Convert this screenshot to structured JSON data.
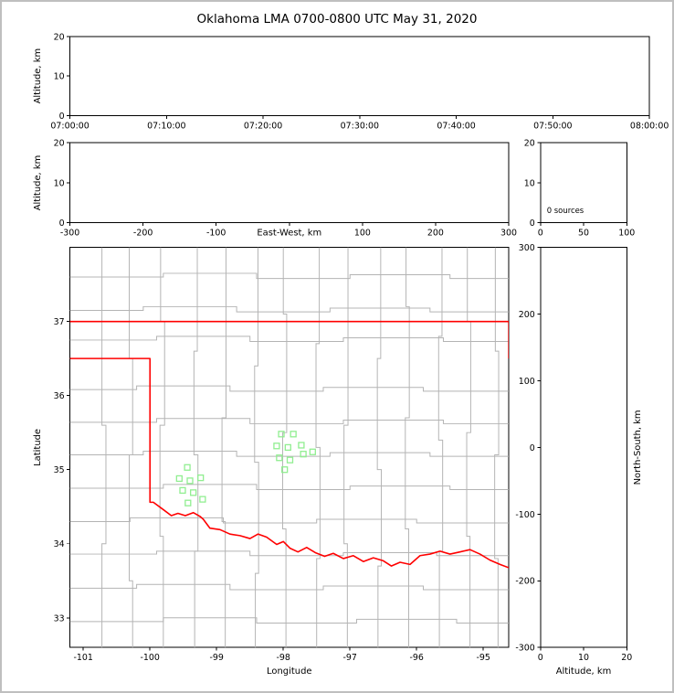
{
  "title": "Oklahoma LMA 0700-0800 UTC May 31, 2020",
  "colors": {
    "axis": "#000000",
    "background": "#ffffff",
    "frame": "#bfbfbf",
    "state_border": "#ff0000",
    "county_border": "#b4b4b4",
    "station": "#90ee90"
  },
  "chart_data": [
    {
      "id": "time-height",
      "type": "scatter",
      "title": "",
      "xlabel": "",
      "ylabel": "Altitude, km",
      "xlim": [
        0,
        3600
      ],
      "xticks": [
        0,
        600,
        1200,
        1800,
        2400,
        3000,
        3600
      ],
      "xtick_labels": [
        "07:00:00",
        "07:10:00",
        "07:20:00",
        "07:30:00",
        "07:40:00",
        "07:50:00",
        "08:00:00"
      ],
      "ylim": [
        0,
        20
      ],
      "yticks": [
        0,
        10,
        20
      ],
      "points": []
    },
    {
      "id": "ew-height",
      "type": "scatter",
      "title": "",
      "xlabel": "East-West, km",
      "ylabel": "Altitude, km",
      "xlim": [
        -300,
        300
      ],
      "xticks": [
        -300,
        -200,
        -100,
        0,
        100,
        200,
        300
      ],
      "xtick_labels": [
        "-300",
        "-200",
        "-100",
        "",
        "100",
        "200",
        "300"
      ],
      "ylim": [
        0,
        20
      ],
      "yticks": [
        0,
        10,
        20
      ],
      "points": []
    },
    {
      "id": "alt-histogram",
      "type": "line",
      "title": "",
      "xlabel": "",
      "ylabel": "",
      "xlim": [
        0,
        100
      ],
      "xticks": [
        0,
        50,
        100
      ],
      "xtick_labels": [
        "0",
        "50",
        "100"
      ],
      "ylim": [
        0,
        20
      ],
      "yticks": [
        0,
        10,
        20
      ],
      "annotation": "0 sources",
      "points": []
    },
    {
      "id": "plan-map",
      "type": "scatter",
      "title": "",
      "xlabel": "Longitude",
      "ylabel": "Latitude",
      "xlim": [
        -101.2,
        -94.62
      ],
      "xticks": [
        -101,
        -100,
        -99,
        -98,
        -97,
        -96,
        -95
      ],
      "xtick_labels": [
        "-101",
        "-100",
        "-99",
        "-98",
        "-97",
        "-96",
        "-95"
      ],
      "ylim": [
        32.6,
        38.0
      ],
      "yticks": [
        33,
        34,
        35,
        36,
        37
      ],
      "stations": [
        [
          -98.03,
          35.48
        ],
        [
          -97.85,
          35.48
        ],
        [
          -98.1,
          35.32
        ],
        [
          -97.93,
          35.3
        ],
        [
          -97.73,
          35.33
        ],
        [
          -98.06,
          35.16
        ],
        [
          -97.9,
          35.13
        ],
        [
          -97.7,
          35.21
        ],
        [
          -97.56,
          35.24
        ],
        [
          -97.98,
          35.0
        ],
        [
          -99.44,
          35.03
        ],
        [
          -99.56,
          34.88
        ],
        [
          -99.4,
          34.85
        ],
        [
          -99.24,
          34.89
        ],
        [
          -99.51,
          34.72
        ],
        [
          -99.35,
          34.69
        ],
        [
          -99.43,
          34.55
        ],
        [
          -99.21,
          34.6
        ]
      ]
    },
    {
      "id": "ns-height",
      "type": "scatter",
      "title": "",
      "xlabel": "Altitude, km",
      "ylabel": "North-South, km",
      "xlim": [
        0,
        20
      ],
      "xticks": [
        0,
        10,
        20
      ],
      "xtick_labels": [
        "0",
        "10",
        "20"
      ],
      "ylim": [
        -300,
        300
      ],
      "yticks": [
        -300,
        -200,
        -100,
        0,
        100,
        200,
        300
      ],
      "points": []
    }
  ],
  "map": {
    "state_border": [
      [
        [
          -101.2,
          37.0
        ],
        [
          -94.618,
          37.0
        ],
        [
          -94.618,
          36.5
        ]
      ],
      [
        [
          -101.2,
          36.5
        ],
        [
          -100.0,
          36.5
        ],
        [
          -100.0,
          34.56
        ],
        [
          -99.95,
          34.56
        ],
        [
          -99.8,
          34.46
        ],
        [
          -99.68,
          34.38
        ],
        [
          -99.58,
          34.41
        ],
        [
          -99.47,
          34.38
        ],
        [
          -99.35,
          34.42
        ],
        [
          -99.25,
          34.37
        ],
        [
          -99.2,
          34.33
        ],
        [
          -99.1,
          34.21
        ],
        [
          -98.95,
          34.19
        ],
        [
          -98.8,
          34.13
        ],
        [
          -98.65,
          34.11
        ],
        [
          -98.5,
          34.07
        ],
        [
          -98.38,
          34.13
        ],
        [
          -98.25,
          34.09
        ],
        [
          -98.1,
          33.99
        ],
        [
          -98.0,
          34.03
        ],
        [
          -97.9,
          33.94
        ],
        [
          -97.78,
          33.89
        ],
        [
          -97.65,
          33.95
        ],
        [
          -97.52,
          33.88
        ],
        [
          -97.38,
          33.83
        ],
        [
          -97.25,
          33.87
        ],
        [
          -97.1,
          33.8
        ],
        [
          -96.95,
          33.84
        ],
        [
          -96.8,
          33.76
        ],
        [
          -96.65,
          33.81
        ],
        [
          -96.5,
          33.77
        ],
        [
          -96.38,
          33.7
        ],
        [
          -96.25,
          33.75
        ],
        [
          -96.1,
          33.72
        ],
        [
          -95.95,
          33.84
        ],
        [
          -95.8,
          33.86
        ],
        [
          -95.65,
          33.9
        ],
        [
          -95.5,
          33.86
        ],
        [
          -95.35,
          33.89
        ],
        [
          -95.2,
          33.92
        ],
        [
          -95.05,
          33.86
        ],
        [
          -94.9,
          33.78
        ],
        [
          -94.75,
          33.72
        ],
        [
          -94.6,
          33.67
        ]
      ]
    ],
    "county_lines": [
      [
        [
          -100.72,
          32.6
        ],
        [
          -100.72,
          34.0
        ],
        [
          -100.66,
          34.0
        ],
        [
          -100.66,
          35.6
        ],
        [
          -100.72,
          35.6
        ],
        [
          -100.72,
          38.0
        ]
      ],
      [
        [
          -100.26,
          32.6
        ],
        [
          -100.26,
          33.5
        ],
        [
          -100.31,
          33.5
        ],
        [
          -100.31,
          35.2
        ],
        [
          -100.26,
          35.2
        ],
        [
          -100.26,
          36.5
        ],
        [
          -100.31,
          36.5
        ],
        [
          -100.31,
          38.0
        ]
      ],
      [
        [
          -99.8,
          32.6
        ],
        [
          -99.8,
          34.1
        ],
        [
          -99.85,
          34.1
        ],
        [
          -99.85,
          35.6
        ],
        [
          -99.78,
          35.6
        ],
        [
          -99.78,
          37.0
        ],
        [
          -99.84,
          37.0
        ],
        [
          -99.84,
          38.0
        ]
      ],
      [
        [
          -99.33,
          32.6
        ],
        [
          -99.33,
          33.9
        ],
        [
          -99.28,
          33.9
        ],
        [
          -99.28,
          35.2
        ],
        [
          -99.34,
          35.2
        ],
        [
          -99.34,
          36.6
        ],
        [
          -99.29,
          36.6
        ],
        [
          -99.29,
          38.0
        ]
      ],
      [
        [
          -98.87,
          32.6
        ],
        [
          -98.87,
          34.3
        ],
        [
          -98.92,
          34.3
        ],
        [
          -98.92,
          35.7
        ],
        [
          -98.86,
          35.7
        ],
        [
          -98.86,
          38.0
        ]
      ],
      [
        [
          -98.42,
          32.6
        ],
        [
          -98.42,
          33.6
        ],
        [
          -98.37,
          33.6
        ],
        [
          -98.37,
          35.1
        ],
        [
          -98.43,
          35.1
        ],
        [
          -98.43,
          36.4
        ],
        [
          -98.38,
          36.4
        ],
        [
          -98.38,
          38.0
        ]
      ],
      [
        [
          -97.96,
          32.6
        ],
        [
          -97.96,
          34.2
        ],
        [
          -98.01,
          34.2
        ],
        [
          -98.01,
          35.5
        ],
        [
          -97.95,
          35.5
        ],
        [
          -97.95,
          37.1
        ],
        [
          -98.0,
          37.1
        ],
        [
          -98.0,
          38.0
        ]
      ],
      [
        [
          -97.5,
          32.6
        ],
        [
          -97.5,
          33.8
        ],
        [
          -97.45,
          33.8
        ],
        [
          -97.45,
          35.3
        ],
        [
          -97.51,
          35.3
        ],
        [
          -97.51,
          36.7
        ],
        [
          -97.46,
          36.7
        ],
        [
          -97.46,
          38.0
        ]
      ],
      [
        [
          -97.04,
          32.6
        ],
        [
          -97.04,
          34.0
        ],
        [
          -97.09,
          34.0
        ],
        [
          -97.09,
          35.6
        ],
        [
          -97.03,
          35.6
        ],
        [
          -97.03,
          38.0
        ]
      ],
      [
        [
          -96.58,
          32.6
        ],
        [
          -96.58,
          33.7
        ],
        [
          -96.53,
          33.7
        ],
        [
          -96.53,
          35.0
        ],
        [
          -96.59,
          35.0
        ],
        [
          -96.59,
          36.5
        ],
        [
          -96.54,
          36.5
        ],
        [
          -96.54,
          38.0
        ]
      ],
      [
        [
          -96.12,
          32.6
        ],
        [
          -96.12,
          34.2
        ],
        [
          -96.17,
          34.2
        ],
        [
          -96.17,
          35.7
        ],
        [
          -96.11,
          35.7
        ],
        [
          -96.11,
          37.2
        ],
        [
          -96.16,
          37.2
        ],
        [
          -96.16,
          38.0
        ]
      ],
      [
        [
          -95.66,
          32.6
        ],
        [
          -95.66,
          33.9
        ],
        [
          -95.61,
          33.9
        ],
        [
          -95.61,
          35.4
        ],
        [
          -95.67,
          35.4
        ],
        [
          -95.67,
          36.8
        ],
        [
          -95.62,
          36.8
        ],
        [
          -95.62,
          38.0
        ]
      ],
      [
        [
          -95.2,
          32.6
        ],
        [
          -95.2,
          34.1
        ],
        [
          -95.25,
          34.1
        ],
        [
          -95.25,
          35.5
        ],
        [
          -95.19,
          35.5
        ],
        [
          -95.19,
          37.0
        ],
        [
          -95.24,
          37.0
        ],
        [
          -95.24,
          38.0
        ]
      ],
      [
        [
          -94.78,
          32.6
        ],
        [
          -94.78,
          33.8
        ],
        [
          -94.83,
          33.8
        ],
        [
          -94.83,
          35.2
        ],
        [
          -94.77,
          35.2
        ],
        [
          -94.77,
          36.6
        ],
        [
          -94.82,
          36.6
        ],
        [
          -94.82,
          38.0
        ]
      ],
      [
        [
          -101.2,
          32.95
        ],
        [
          -99.8,
          32.95
        ],
        [
          -99.8,
          33.0
        ],
        [
          -98.4,
          33.0
        ],
        [
          -98.4,
          32.93
        ],
        [
          -96.9,
          32.93
        ],
        [
          -96.9,
          32.98
        ],
        [
          -95.4,
          32.98
        ],
        [
          -95.4,
          32.93
        ],
        [
          -94.62,
          32.93
        ]
      ],
      [
        [
          -101.2,
          33.4
        ],
        [
          -100.2,
          33.4
        ],
        [
          -100.2,
          33.45
        ],
        [
          -98.8,
          33.45
        ],
        [
          -98.8,
          33.38
        ],
        [
          -97.4,
          33.38
        ],
        [
          -97.4,
          33.43
        ],
        [
          -95.9,
          33.43
        ],
        [
          -95.9,
          33.38
        ],
        [
          -94.62,
          33.38
        ]
      ],
      [
        [
          -101.2,
          33.86
        ],
        [
          -99.9,
          33.86
        ],
        [
          -99.9,
          33.9
        ],
        [
          -98.5,
          33.9
        ],
        [
          -98.5,
          33.84
        ],
        [
          -97.1,
          33.84
        ],
        [
          -97.1,
          33.88
        ],
        [
          -95.7,
          33.88
        ],
        [
          -95.7,
          33.84
        ],
        [
          -94.62,
          33.84
        ]
      ],
      [
        [
          -101.2,
          34.3
        ],
        [
          -100.3,
          34.3
        ],
        [
          -100.3,
          34.35
        ],
        [
          -98.9,
          34.35
        ],
        [
          -98.9,
          34.28
        ],
        [
          -97.5,
          34.28
        ],
        [
          -97.5,
          34.33
        ],
        [
          -96.0,
          34.33
        ],
        [
          -96.0,
          34.28
        ],
        [
          -94.62,
          34.28
        ]
      ],
      [
        [
          -101.2,
          34.75
        ],
        [
          -99.8,
          34.75
        ],
        [
          -99.8,
          34.8
        ],
        [
          -98.4,
          34.8
        ],
        [
          -98.4,
          34.73
        ],
        [
          -97.0,
          34.73
        ],
        [
          -97.0,
          34.78
        ],
        [
          -95.5,
          34.78
        ],
        [
          -95.5,
          34.73
        ],
        [
          -94.62,
          34.73
        ]
      ],
      [
        [
          -101.2,
          35.2
        ],
        [
          -100.1,
          35.2
        ],
        [
          -100.1,
          35.25
        ],
        [
          -98.7,
          35.25
        ],
        [
          -98.7,
          35.18
        ],
        [
          -97.3,
          35.18
        ],
        [
          -97.3,
          35.23
        ],
        [
          -95.8,
          35.23
        ],
        [
          -95.8,
          35.18
        ],
        [
          -94.62,
          35.18
        ]
      ],
      [
        [
          -101.2,
          35.64
        ],
        [
          -99.9,
          35.64
        ],
        [
          -99.9,
          35.69
        ],
        [
          -98.5,
          35.69
        ],
        [
          -98.5,
          35.62
        ],
        [
          -97.1,
          35.62
        ],
        [
          -97.1,
          35.67
        ],
        [
          -95.6,
          35.67
        ],
        [
          -95.6,
          35.62
        ],
        [
          -94.62,
          35.62
        ]
      ],
      [
        [
          -101.2,
          36.08
        ],
        [
          -100.2,
          36.08
        ],
        [
          -100.2,
          36.13
        ],
        [
          -98.8,
          36.13
        ],
        [
          -98.8,
          36.06
        ],
        [
          -97.4,
          36.06
        ],
        [
          -97.4,
          36.11
        ],
        [
          -95.9,
          36.11
        ],
        [
          -95.9,
          36.06
        ],
        [
          -94.62,
          36.06
        ]
      ],
      [
        [
          -101.2,
          36.75
        ],
        [
          -99.9,
          36.75
        ],
        [
          -99.9,
          36.8
        ],
        [
          -98.5,
          36.8
        ],
        [
          -98.5,
          36.73
        ],
        [
          -97.1,
          36.73
        ],
        [
          -97.1,
          36.78
        ],
        [
          -95.6,
          36.78
        ],
        [
          -95.6,
          36.73
        ],
        [
          -94.62,
          36.73
        ]
      ],
      [
        [
          -101.2,
          37.15
        ],
        [
          -100.1,
          37.15
        ],
        [
          -100.1,
          37.2
        ],
        [
          -98.7,
          37.2
        ],
        [
          -98.7,
          37.13
        ],
        [
          -97.3,
          37.13
        ],
        [
          -97.3,
          37.18
        ],
        [
          -95.8,
          37.18
        ],
        [
          -95.8,
          37.13
        ],
        [
          -94.62,
          37.13
        ]
      ],
      [
        [
          -101.2,
          37.6
        ],
        [
          -99.8,
          37.6
        ],
        [
          -99.8,
          37.65
        ],
        [
          -98.4,
          37.65
        ],
        [
          -98.4,
          37.58
        ],
        [
          -97.0,
          37.58
        ],
        [
          -97.0,
          37.63
        ],
        [
          -95.5,
          37.63
        ],
        [
          -95.5,
          37.58
        ],
        [
          -94.62,
          37.58
        ]
      ]
    ]
  }
}
